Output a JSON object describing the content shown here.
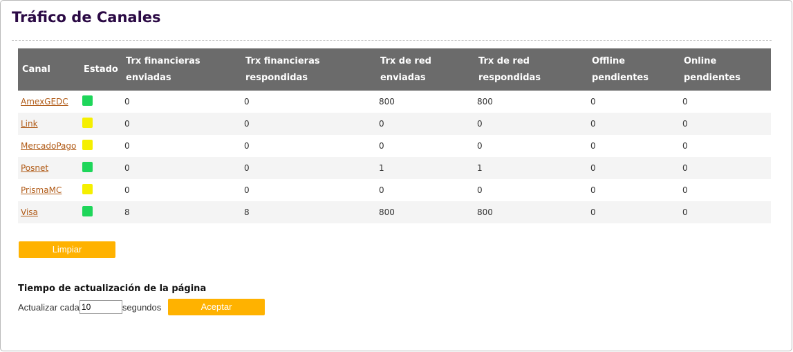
{
  "header": {
    "title": "Tráfico de Canales"
  },
  "table": {
    "columns": [
      "Canal",
      "Estado",
      "Trx financieras enviadas",
      "Trx financieras respondidas",
      "Trx de red enviadas",
      "Trx de red respondidas",
      "Offline pendientes",
      "Online pendientes"
    ],
    "rows": [
      {
        "canal": "AmexGEDC",
        "estado_color": "#1ed65a",
        "cells": [
          0,
          0,
          800,
          800,
          0,
          0
        ]
      },
      {
        "canal": "Link",
        "estado_color": "#f5ef00",
        "cells": [
          0,
          0,
          0,
          0,
          0,
          0
        ]
      },
      {
        "canal": "MercadoPago",
        "estado_color": "#f5ef00",
        "cells": [
          0,
          0,
          0,
          0,
          0,
          0
        ]
      },
      {
        "canal": "Posnet",
        "estado_color": "#1ed65a",
        "cells": [
          0,
          0,
          1,
          1,
          0,
          0
        ]
      },
      {
        "canal": "PrismaMC",
        "estado_color": "#f5ef00",
        "cells": [
          0,
          0,
          0,
          0,
          0,
          0
        ]
      },
      {
        "canal": "Visa",
        "estado_color": "#1ed65a",
        "cells": [
          8,
          8,
          800,
          800,
          0,
          0
        ]
      }
    ]
  },
  "clear_button": "Limpiar",
  "refresh": {
    "title": "Tiempo de actualización de la página",
    "label_before": "Actualizar cada",
    "value": 10,
    "label_after": "segundos",
    "button": "Aceptar"
  }
}
